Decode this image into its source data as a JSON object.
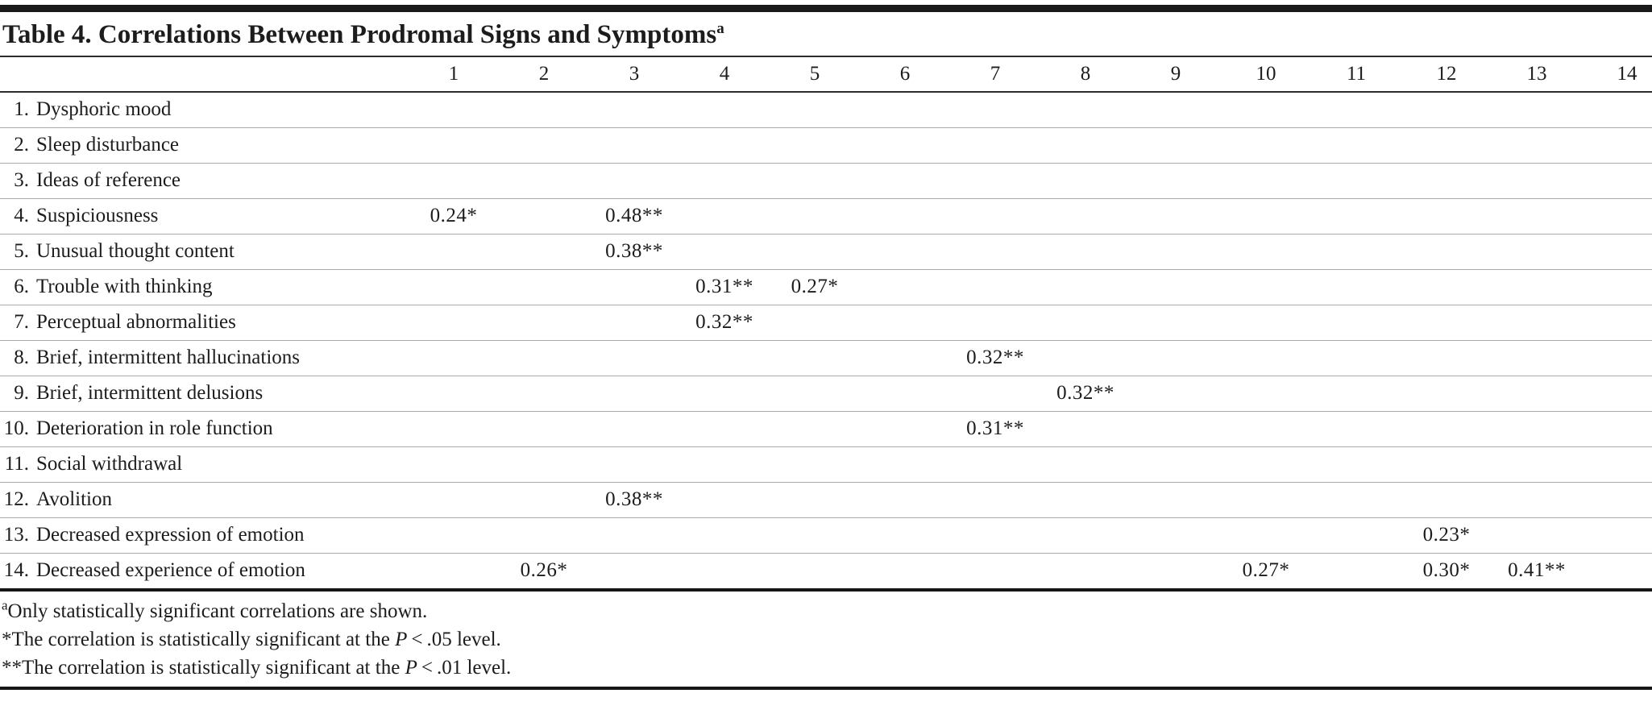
{
  "page": {
    "title": "Table 4. Correlations Between Prodromal Signs and Symptoms",
    "title_superscript": "a"
  },
  "table": {
    "column_headers": [
      "1",
      "2",
      "3",
      "4",
      "5",
      "6",
      "7",
      "8",
      "9",
      "10",
      "11",
      "12",
      "13",
      "14"
    ],
    "rows": [
      {
        "num": "1.",
        "label": "Dysphoric mood",
        "values": {}
      },
      {
        "num": "2.",
        "label": "Sleep disturbance",
        "values": {}
      },
      {
        "num": "3.",
        "label": "Ideas of reference",
        "values": {}
      },
      {
        "num": "4.",
        "label": "Suspiciousness",
        "values": {
          "1": "0.24*",
          "3": "0.48**"
        }
      },
      {
        "num": "5.",
        "label": "Unusual thought content",
        "values": {
          "3": "0.38**"
        }
      },
      {
        "num": "6.",
        "label": "Trouble with thinking",
        "values": {
          "4": "0.31**",
          "5": "0.27*"
        }
      },
      {
        "num": "7.",
        "label": "Perceptual abnormalities",
        "values": {
          "4": "0.32**"
        }
      },
      {
        "num": "8.",
        "label": "Brief, intermittent hallucinations",
        "values": {
          "7": "0.32**"
        }
      },
      {
        "num": "9.",
        "label": "Brief, intermittent delusions",
        "values": {
          "8": "0.32**"
        }
      },
      {
        "num": "10.",
        "label": "Deterioration in role function",
        "values": {
          "7": "0.31**"
        }
      },
      {
        "num": "11.",
        "label": "Social withdrawal",
        "values": {}
      },
      {
        "num": "12.",
        "label": "Avolition",
        "values": {
          "3": "0.38**"
        }
      },
      {
        "num": "13.",
        "label": "Decreased expression of emotion",
        "values": {
          "12": "0.23*"
        }
      },
      {
        "num": "14.",
        "label": "Decreased experience of emotion",
        "values": {
          "2": "0.26*",
          "10": "0.27*",
          "12": "0.30*",
          "13": "0.41**"
        }
      }
    ]
  },
  "footnotes": [
    {
      "marker": "a",
      "superscript": true,
      "prefix": "Only statistically significant correlations are shown.",
      "italic": "",
      "suffix": ""
    },
    {
      "marker": "*",
      "superscript": false,
      "prefix": "The correlation is statistically significant at the ",
      "italic": "P",
      "suffix": " < .05 level."
    },
    {
      "marker": "**",
      "superscript": false,
      "prefix": "The correlation is statistically significant at the ",
      "italic": "P",
      "suffix": " < .01 level."
    }
  ],
  "colors": {
    "text": "#1c1c1c",
    "heavy_rule": "#161616",
    "medium_rule": "#2b2b2b",
    "row_rule": "#ababab",
    "background": "#ffffff"
  }
}
